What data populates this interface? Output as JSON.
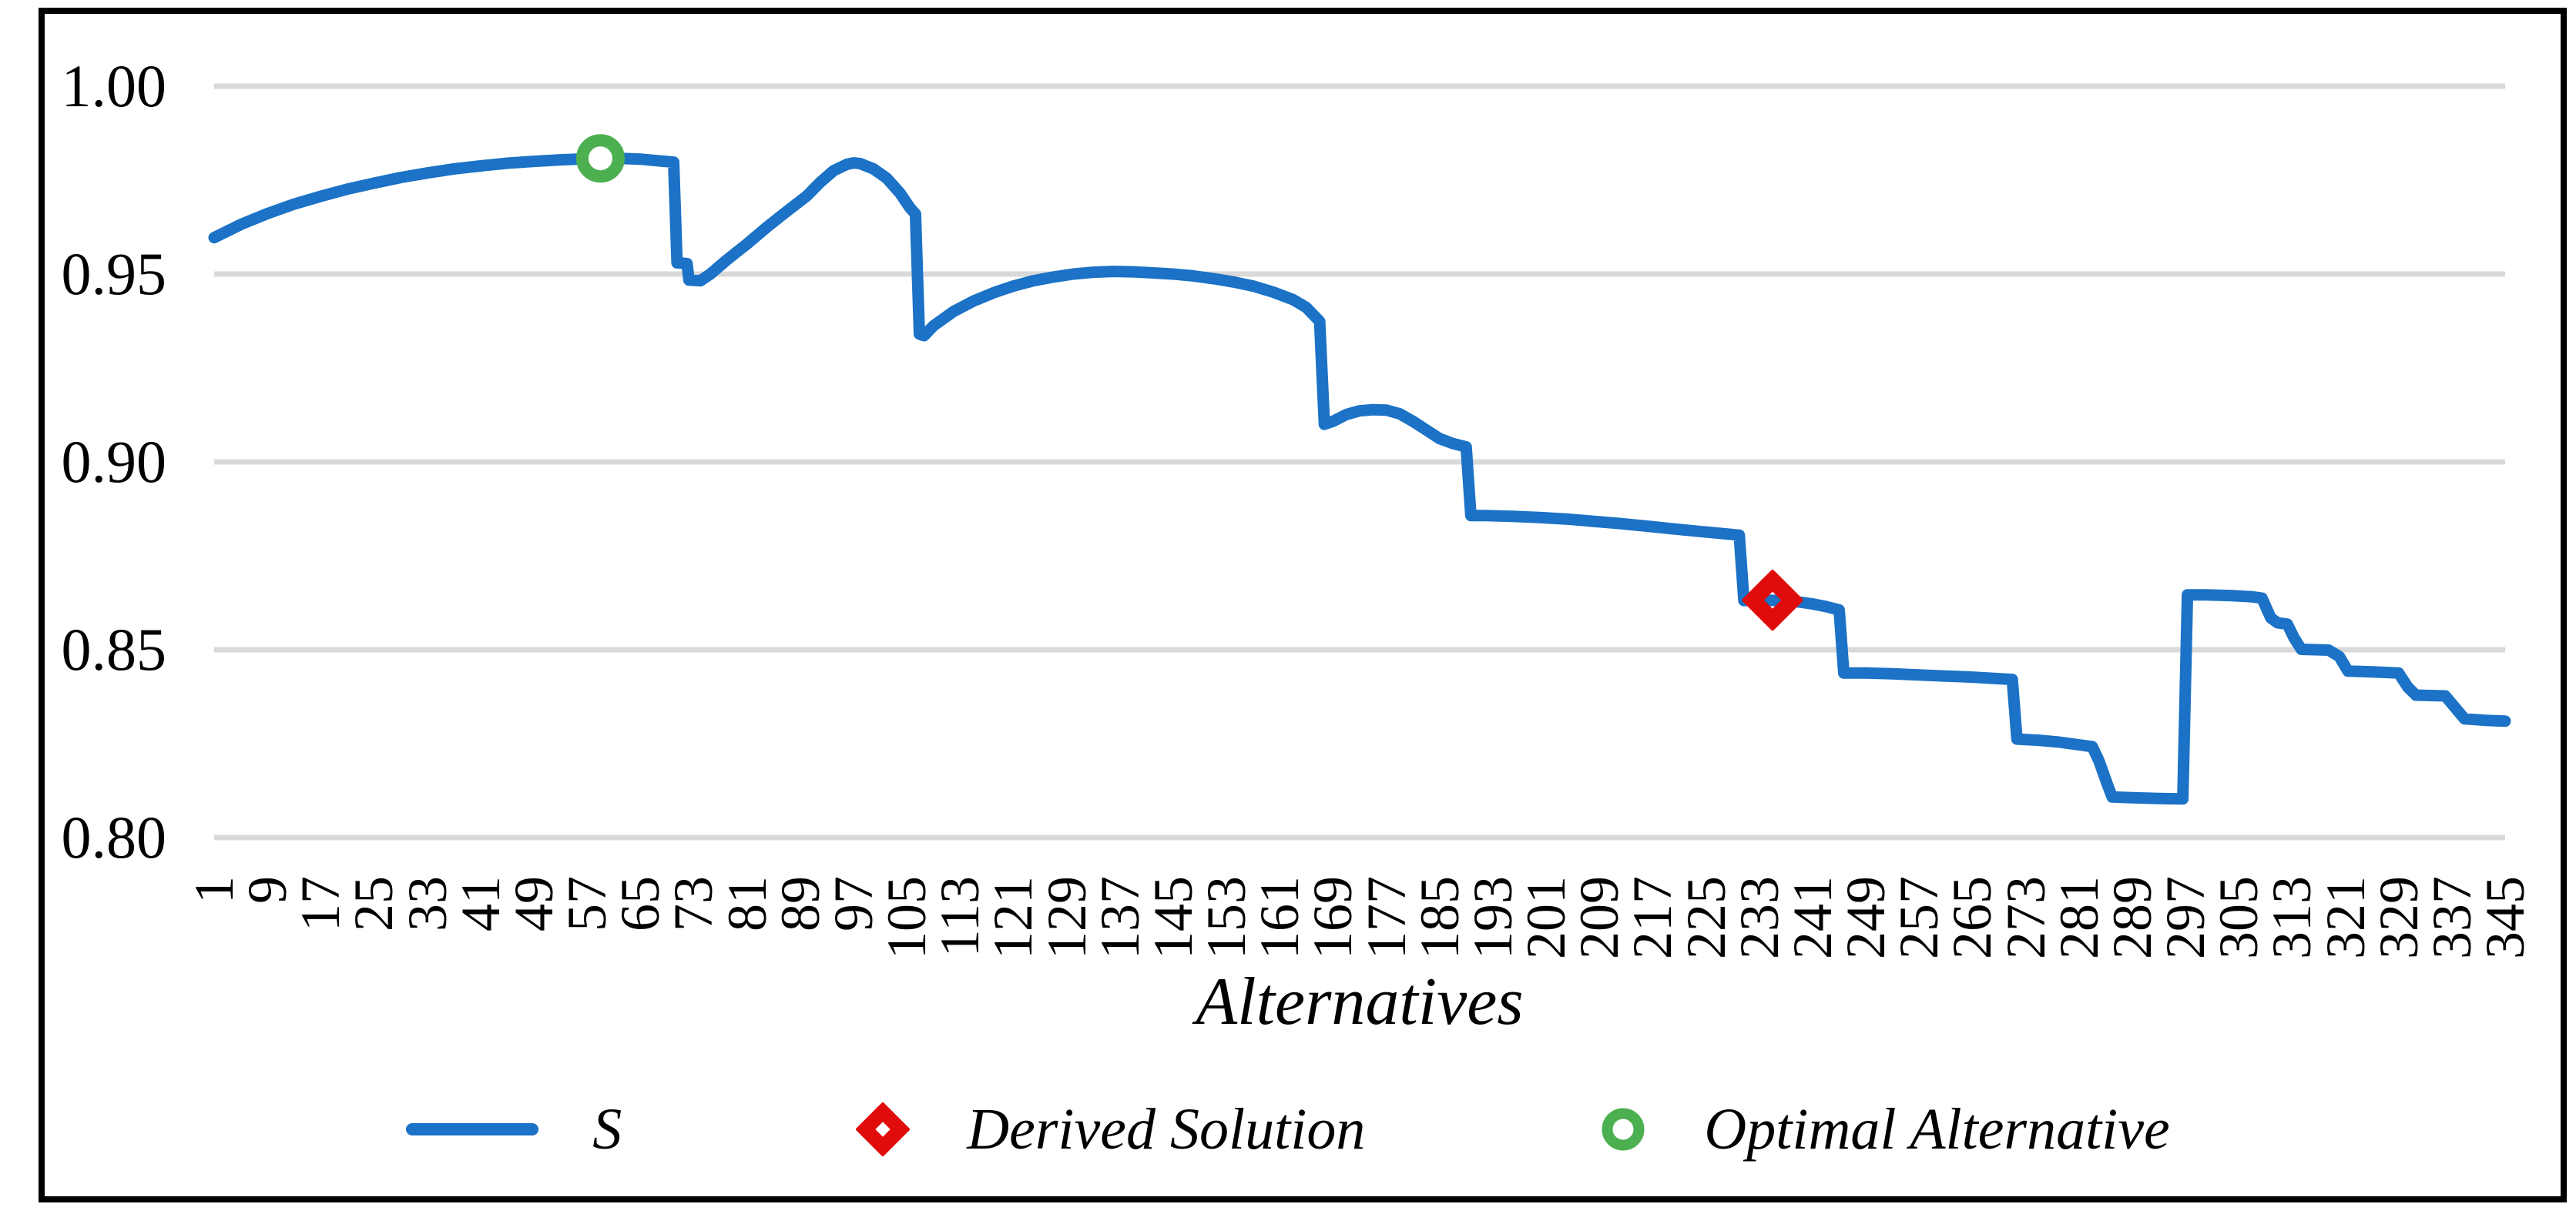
{
  "figure": {
    "background": "#ffffff",
    "border_color": "#000000"
  },
  "chart_data": {
    "type": "line",
    "title": "",
    "xlabel": "Alternatives",
    "ylabel": "",
    "grid": true,
    "legend_position": "bottom",
    "colors": {
      "series": "#1B72C6",
      "gridline": "#D9D9D9",
      "derived_solution": "#E00B0B",
      "optimal_alternative": "#4CAF50",
      "marker_fill": "#ffffff",
      "text": "#000000"
    },
    "x_axis": {
      "min": 1,
      "max": 345,
      "tick_step": 8,
      "tick_labels": [
        "1",
        "9",
        "17",
        "25",
        "33",
        "41",
        "49",
        "57",
        "65",
        "73",
        "81",
        "89",
        "97",
        "105",
        "113",
        "121",
        "129",
        "137",
        "145",
        "153",
        "161",
        "169",
        "177",
        "185",
        "193",
        "201",
        "209",
        "217",
        "225",
        "233",
        "241",
        "249",
        "257",
        "265",
        "273",
        "281",
        "289",
        "297",
        "305",
        "313",
        "321",
        "329",
        "337",
        "345"
      ]
    },
    "y_axis": {
      "min": 0.8,
      "max": 1.0,
      "tick_step": 0.05,
      "tick_labels": [
        "1.00",
        "0.95",
        "0.90",
        "0.85",
        "0.80"
      ],
      "tick_values": [
        1.0,
        0.95,
        0.9,
        0.85,
        0.8
      ]
    },
    "series": [
      {
        "name": "S",
        "color": "#1B72C6",
        "points": [
          [
            1,
            0.9597
          ],
          [
            5,
            0.9632
          ],
          [
            9,
            0.9661
          ],
          [
            13,
            0.9686
          ],
          [
            17,
            0.9707
          ],
          [
            21,
            0.9726
          ],
          [
            25,
            0.9742
          ],
          [
            29,
            0.9757
          ],
          [
            33,
            0.9769
          ],
          [
            37,
            0.978
          ],
          [
            41,
            0.9788
          ],
          [
            45,
            0.9795
          ],
          [
            49,
            0.98
          ],
          [
            53,
            0.9804
          ],
          [
            57,
            0.9807
          ],
          [
            59,
            0.9808
          ],
          [
            62,
            0.9808
          ],
          [
            65,
            0.9806
          ],
          [
            68,
            0.9801
          ],
          [
            70,
            0.9798
          ],
          [
            70.5,
            0.953
          ],
          [
            72,
            0.9528
          ],
          [
            72.3,
            0.9484
          ],
          [
            74,
            0.9482
          ],
          [
            75.5,
            0.95
          ],
          [
            78,
            0.9538
          ],
          [
            81,
            0.958
          ],
          [
            84,
            0.9625
          ],
          [
            87,
            0.9667
          ],
          [
            90,
            0.9708
          ],
          [
            92,
            0.9744
          ],
          [
            94,
            0.9775
          ],
          [
            96,
            0.9792
          ],
          [
            97,
            0.9796
          ],
          [
            98,
            0.9794
          ],
          [
            100,
            0.978
          ],
          [
            102,
            0.9755
          ],
          [
            104,
            0.9715
          ],
          [
            105.5,
            0.9676
          ],
          [
            106.3,
            0.966
          ],
          [
            106.9,
            0.934
          ],
          [
            107.6,
            0.9336
          ],
          [
            109,
            0.9362
          ],
          [
            112,
            0.94
          ],
          [
            115,
            0.9428
          ],
          [
            118,
            0.945
          ],
          [
            121,
            0.9468
          ],
          [
            124,
            0.9482
          ],
          [
            127,
            0.9492
          ],
          [
            130,
            0.95
          ],
          [
            133,
            0.9505
          ],
          [
            136,
            0.9507
          ],
          [
            139,
            0.9506
          ],
          [
            142,
            0.9503
          ],
          [
            145,
            0.95
          ],
          [
            148,
            0.9495
          ],
          [
            151,
            0.9488
          ],
          [
            154,
            0.9479
          ],
          [
            157,
            0.9468
          ],
          [
            160,
            0.9452
          ],
          [
            163,
            0.9432
          ],
          [
            165,
            0.9411
          ],
          [
            167,
            0.9374
          ],
          [
            167.7,
            0.91
          ],
          [
            169,
            0.9108
          ],
          [
            171,
            0.9126
          ],
          [
            173,
            0.9136
          ],
          [
            175,
            0.9139
          ],
          [
            177,
            0.9138
          ],
          [
            179,
            0.9128
          ],
          [
            181,
            0.9108
          ],
          [
            183,
            0.9085
          ],
          [
            185,
            0.9062
          ],
          [
            187,
            0.9049
          ],
          [
            189,
            0.904
          ],
          [
            189.7,
            0.8857
          ],
          [
            192,
            0.8857
          ],
          [
            196,
            0.8855
          ],
          [
            200,
            0.8852
          ],
          [
            204,
            0.8848
          ],
          [
            208,
            0.8842
          ],
          [
            212,
            0.8836
          ],
          [
            216,
            0.8829
          ],
          [
            220,
            0.8822
          ],
          [
            224,
            0.8815
          ],
          [
            227,
            0.881
          ],
          [
            230,
            0.8805
          ],
          [
            230.7,
            0.8631
          ],
          [
            233,
            0.8632
          ],
          [
            236,
            0.8631
          ],
          [
            239,
            0.8627
          ],
          [
            241,
            0.8622
          ],
          [
            243,
            0.8615
          ],
          [
            245,
            0.8606
          ],
          [
            245.7,
            0.8438
          ],
          [
            249,
            0.8438
          ],
          [
            253,
            0.8436
          ],
          [
            257,
            0.8433
          ],
          [
            261,
            0.843
          ],
          [
            265,
            0.8427
          ],
          [
            268,
            0.8424
          ],
          [
            271,
            0.8421
          ],
          [
            271.7,
            0.8262
          ],
          [
            275,
            0.8259
          ],
          [
            278,
            0.8254
          ],
          [
            281,
            0.8247
          ],
          [
            283,
            0.8242
          ],
          [
            284,
            0.8205
          ],
          [
            285.2,
            0.8145
          ],
          [
            286,
            0.8108
          ],
          [
            289,
            0.8106
          ],
          [
            293,
            0.8104
          ],
          [
            296.6,
            0.8103
          ],
          [
            297.3,
            0.8646
          ],
          [
            300,
            0.8646
          ],
          [
            304,
            0.8644
          ],
          [
            307,
            0.8641
          ],
          [
            308.5,
            0.8637
          ],
          [
            309.8,
            0.8585
          ],
          [
            310.8,
            0.8572
          ],
          [
            312.3,
            0.8568
          ],
          [
            313.3,
            0.8532
          ],
          [
            314.4,
            0.8501
          ],
          [
            318.5,
            0.8499
          ],
          [
            320.1,
            0.8482
          ],
          [
            321.4,
            0.8443
          ],
          [
            325,
            0.8441
          ],
          [
            329,
            0.8438
          ],
          [
            330.4,
            0.84
          ],
          [
            331.6,
            0.8379
          ],
          [
            336,
            0.8377
          ],
          [
            337.4,
            0.8348
          ],
          [
            338.9,
            0.8316
          ],
          [
            342,
            0.8312
          ],
          [
            345,
            0.831
          ]
        ]
      }
    ],
    "markers": [
      {
        "name": "Derived Solution",
        "shape": "diamond",
        "color": "#E00B0B",
        "x": 235,
        "y": 0.8632
      },
      {
        "name": "Optimal Alternative",
        "shape": "circle",
        "color": "#4CAF50",
        "x": 59,
        "y": 0.9808
      }
    ],
    "legend": [
      {
        "label": "S",
        "symbol": "line",
        "color": "#1B72C6"
      },
      {
        "label": "Derived Solution",
        "symbol": "diamond",
        "color": "#E00B0B"
      },
      {
        "label": "Optimal Alternative",
        "symbol": "circle",
        "color": "#4CAF50"
      }
    ]
  }
}
